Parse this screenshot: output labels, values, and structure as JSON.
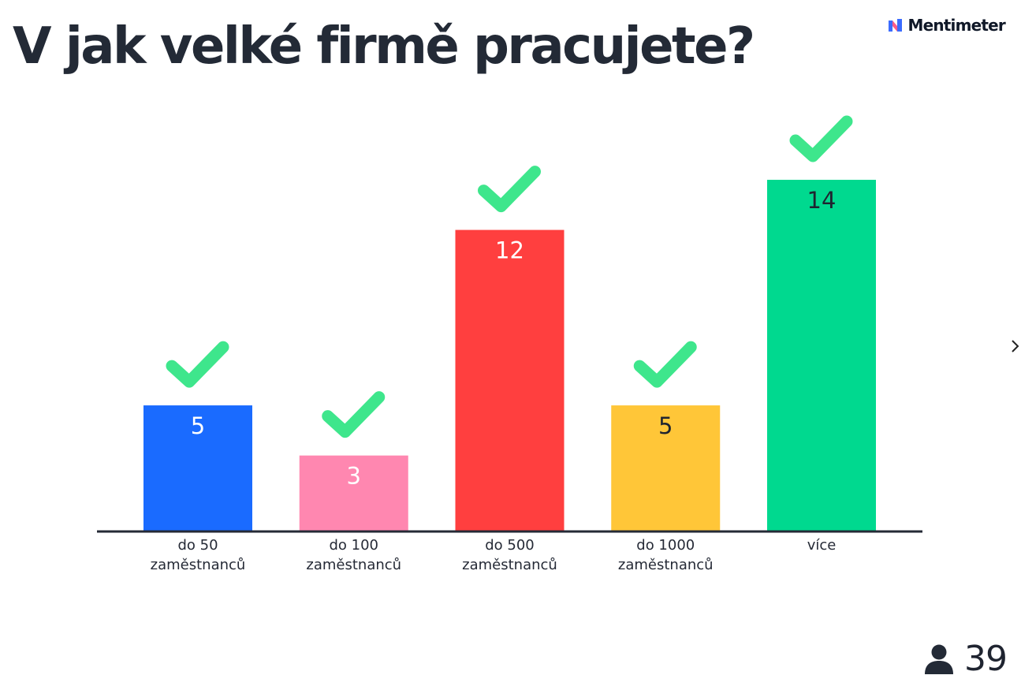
{
  "slide": {
    "question": "V jak velké firmě pracujete?",
    "brand": "Mentimeter",
    "participants_count": "39",
    "participants_icon": "person-icon",
    "next_icon": "chevron-right-icon"
  },
  "chart_data": {
    "type": "bar",
    "title": "V jak velké firmě pracujete?",
    "categories": [
      [
        "do 50",
        "zaměstnanců"
      ],
      [
        "do 100",
        "zaměstnanců"
      ],
      [
        "do 500",
        "zaměstnanců"
      ],
      [
        "do 1000",
        "zaměstnanců"
      ],
      [
        "více"
      ]
    ],
    "values": [
      5,
      3,
      12,
      5,
      14
    ],
    "correct": [
      true,
      true,
      true,
      true,
      true
    ],
    "colors": [
      "#1a6bff",
      "#ff87b0",
      "#ff3f3f",
      "#ffc638",
      "#00d98f"
    ],
    "label_colors": [
      "#ffffff",
      "#ffffff",
      "#ffffff",
      "#1f2430",
      "#1f2430"
    ],
    "check_color": "#3ee68c",
    "axis_color": "#252a36",
    "ylim": [
      0,
      14
    ],
    "grid": false,
    "legend": "none"
  }
}
